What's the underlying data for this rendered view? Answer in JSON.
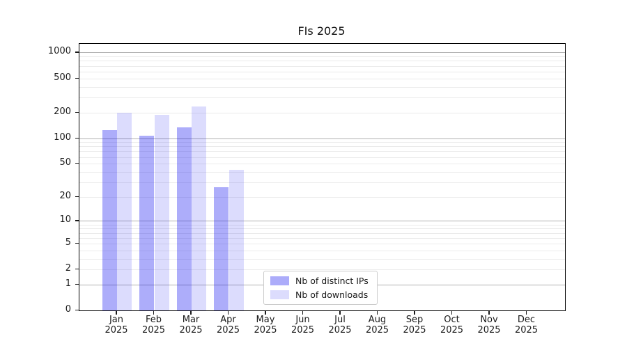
{
  "chart_data": {
    "type": "bar",
    "title": "FIs 2025",
    "x_year": "2025",
    "categories": [
      "Jan",
      "Feb",
      "Mar",
      "Apr",
      "May",
      "Jun",
      "Jul",
      "Aug",
      "Sep",
      "Oct",
      "Nov",
      "Dec"
    ],
    "series": [
      {
        "name": "Nb of distinct IPs",
        "color_hex": "#acacfa",
        "color_rgba": "rgba(20,20,240,0.35)",
        "values": [
          125,
          107,
          135,
          26,
          0,
          0,
          0,
          0,
          0,
          0,
          0,
          0
        ]
      },
      {
        "name": "Nb of downloads",
        "color_hex": "#dcdcfd",
        "color_rgba": "rgba(20,20,240,0.15)",
        "values": [
          198,
          189,
          234,
          42,
          0,
          0,
          0,
          0,
          0,
          0,
          0,
          0
        ]
      }
    ],
    "y_scale": "log1p (symlog-like, linear near 0)",
    "y_ticks": [
      0,
      1,
      2,
      5,
      10,
      20,
      50,
      100,
      200,
      500,
      1000
    ],
    "y_major_gridlines": [
      1,
      10,
      100,
      1000
    ],
    "ylim": [
      0,
      1260
    ],
    "grid": "horizontal, major and minor",
    "legend_position": "inside lower-center-left",
    "legend_entries": [
      "Nb of distinct IPs",
      "Nb of downloads"
    ]
  },
  "colors": {
    "major_grid": "#b0b0b0",
    "minor_grid": "#ebebeb",
    "spine": "#000000",
    "text": "#1a1a1a",
    "legend_border": "#cccccc",
    "background": "#ffffff"
  }
}
